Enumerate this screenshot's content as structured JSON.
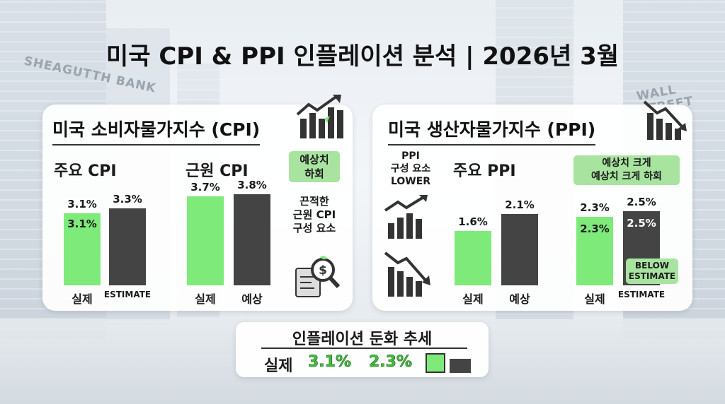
{
  "title": "미국 CPI & PPI 인플레이션 분석 | 2026년 3월",
  "background_signs": {
    "left": "SHEAGUTTH BANK",
    "right": "WALL STREET"
  },
  "colors": {
    "actual": "#7eea7a",
    "estimate": "#444444",
    "badge": "#a8e4a0"
  },
  "cpi_panel": {
    "title": "미국 소비자물가지수 (CPI)",
    "headline_label": "주요 CPI",
    "core_label": "근원 CPI",
    "badge": [
      "예상치",
      "하회"
    ],
    "side_note": [
      "끈적한",
      "근원 CPI",
      "구성 요소"
    ],
    "icons": [
      "bar-chart-up-icon",
      "magnifier-dollar-icon"
    ]
  },
  "ppi_panel": {
    "title": "미국 생산자물가지수 (PPI)",
    "headline_label": "주요 PPI",
    "side_note": [
      "PPI",
      "구성 요소",
      "LOWER"
    ],
    "badge": [
      "예상치 크게",
      "예상치 크게 하회"
    ],
    "below_badge": [
      "BELOW",
      "ESTIMATE"
    ],
    "icons": [
      "bar-chart-down-icon",
      "bar-chart-rising-icon",
      "bar-chart-falling-icon"
    ]
  },
  "bottom": {
    "title": "인플레이션 둔화 추세",
    "label": "실제",
    "v1": "3.1%",
    "v2": "2.3%"
  },
  "chart_data": [
    {
      "type": "bar",
      "title": "주요 CPI",
      "categories": [
        "실제",
        "ESTIMATE"
      ],
      "values": [
        3.1,
        3.3
      ],
      "labels": [
        "3.1%",
        "3.3%"
      ],
      "actual_repeat_label": "3.1%"
    },
    {
      "type": "bar",
      "title": "근원 CPI",
      "categories": [
        "실제",
        "예상"
      ],
      "values": [
        3.7,
        3.8
      ],
      "labels": [
        "3.7%",
        "3.8%"
      ]
    },
    {
      "type": "bar",
      "title": "주요 PPI",
      "categories": [
        "실제",
        "예상"
      ],
      "values": [
        1.6,
        2.1
      ],
      "labels": [
        "1.6%",
        "2.1%"
      ]
    },
    {
      "type": "bar",
      "title": "",
      "categories": [
        "실제",
        "ESTIMATE"
      ],
      "values": [
        2.3,
        2.5
      ],
      "labels": [
        "2.3%",
        "2.5%"
      ],
      "inner_labels": [
        "2.3%",
        "2.5%"
      ]
    }
  ]
}
